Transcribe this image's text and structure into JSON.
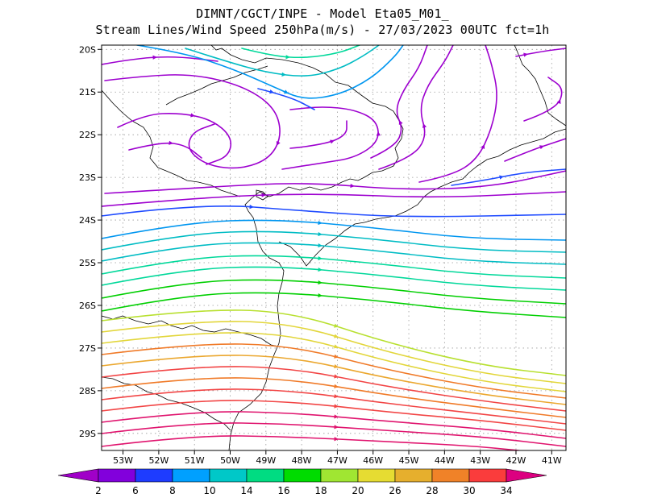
{
  "header": {
    "line1": "DIMNT/CGCT/INPE -  Model Eta05_M01_",
    "line2": "Stream Lines/Wind Speed 250hPa(m/s) -  27/03/2023 00UTC fct=1h"
  },
  "map_data": {
    "type": "streamlines",
    "lat_ticks": [
      "20S",
      "21S",
      "22S",
      "23S",
      "24S",
      "25S",
      "26S",
      "27S",
      "28S",
      "29S"
    ],
    "lon_ticks": [
      "53W",
      "52W",
      "51W",
      "50W",
      "49W",
      "48W",
      "47W",
      "46W",
      "45W",
      "44W",
      "43W",
      "42W",
      "41W"
    ],
    "lat_range": [
      -29.4,
      -19.9
    ],
    "lon_range": [
      -53.6,
      -40.6
    ],
    "grid": "dotted",
    "colorbar": {
      "labels": [
        "2",
        "6",
        "8",
        "10",
        "14",
        "16",
        "18",
        "20",
        "26",
        "28",
        "30",
        "34"
      ],
      "colors": [
        "#a000c8",
        "#8200dc",
        "#1e3cff",
        "#00a0ff",
        "#00c8c8",
        "#00dc82",
        "#00dc00",
        "#a0e632",
        "#e6dc32",
        "#e6af2d",
        "#f08228",
        "#fa3c3c",
        "#dc0080"
      ]
    }
  }
}
